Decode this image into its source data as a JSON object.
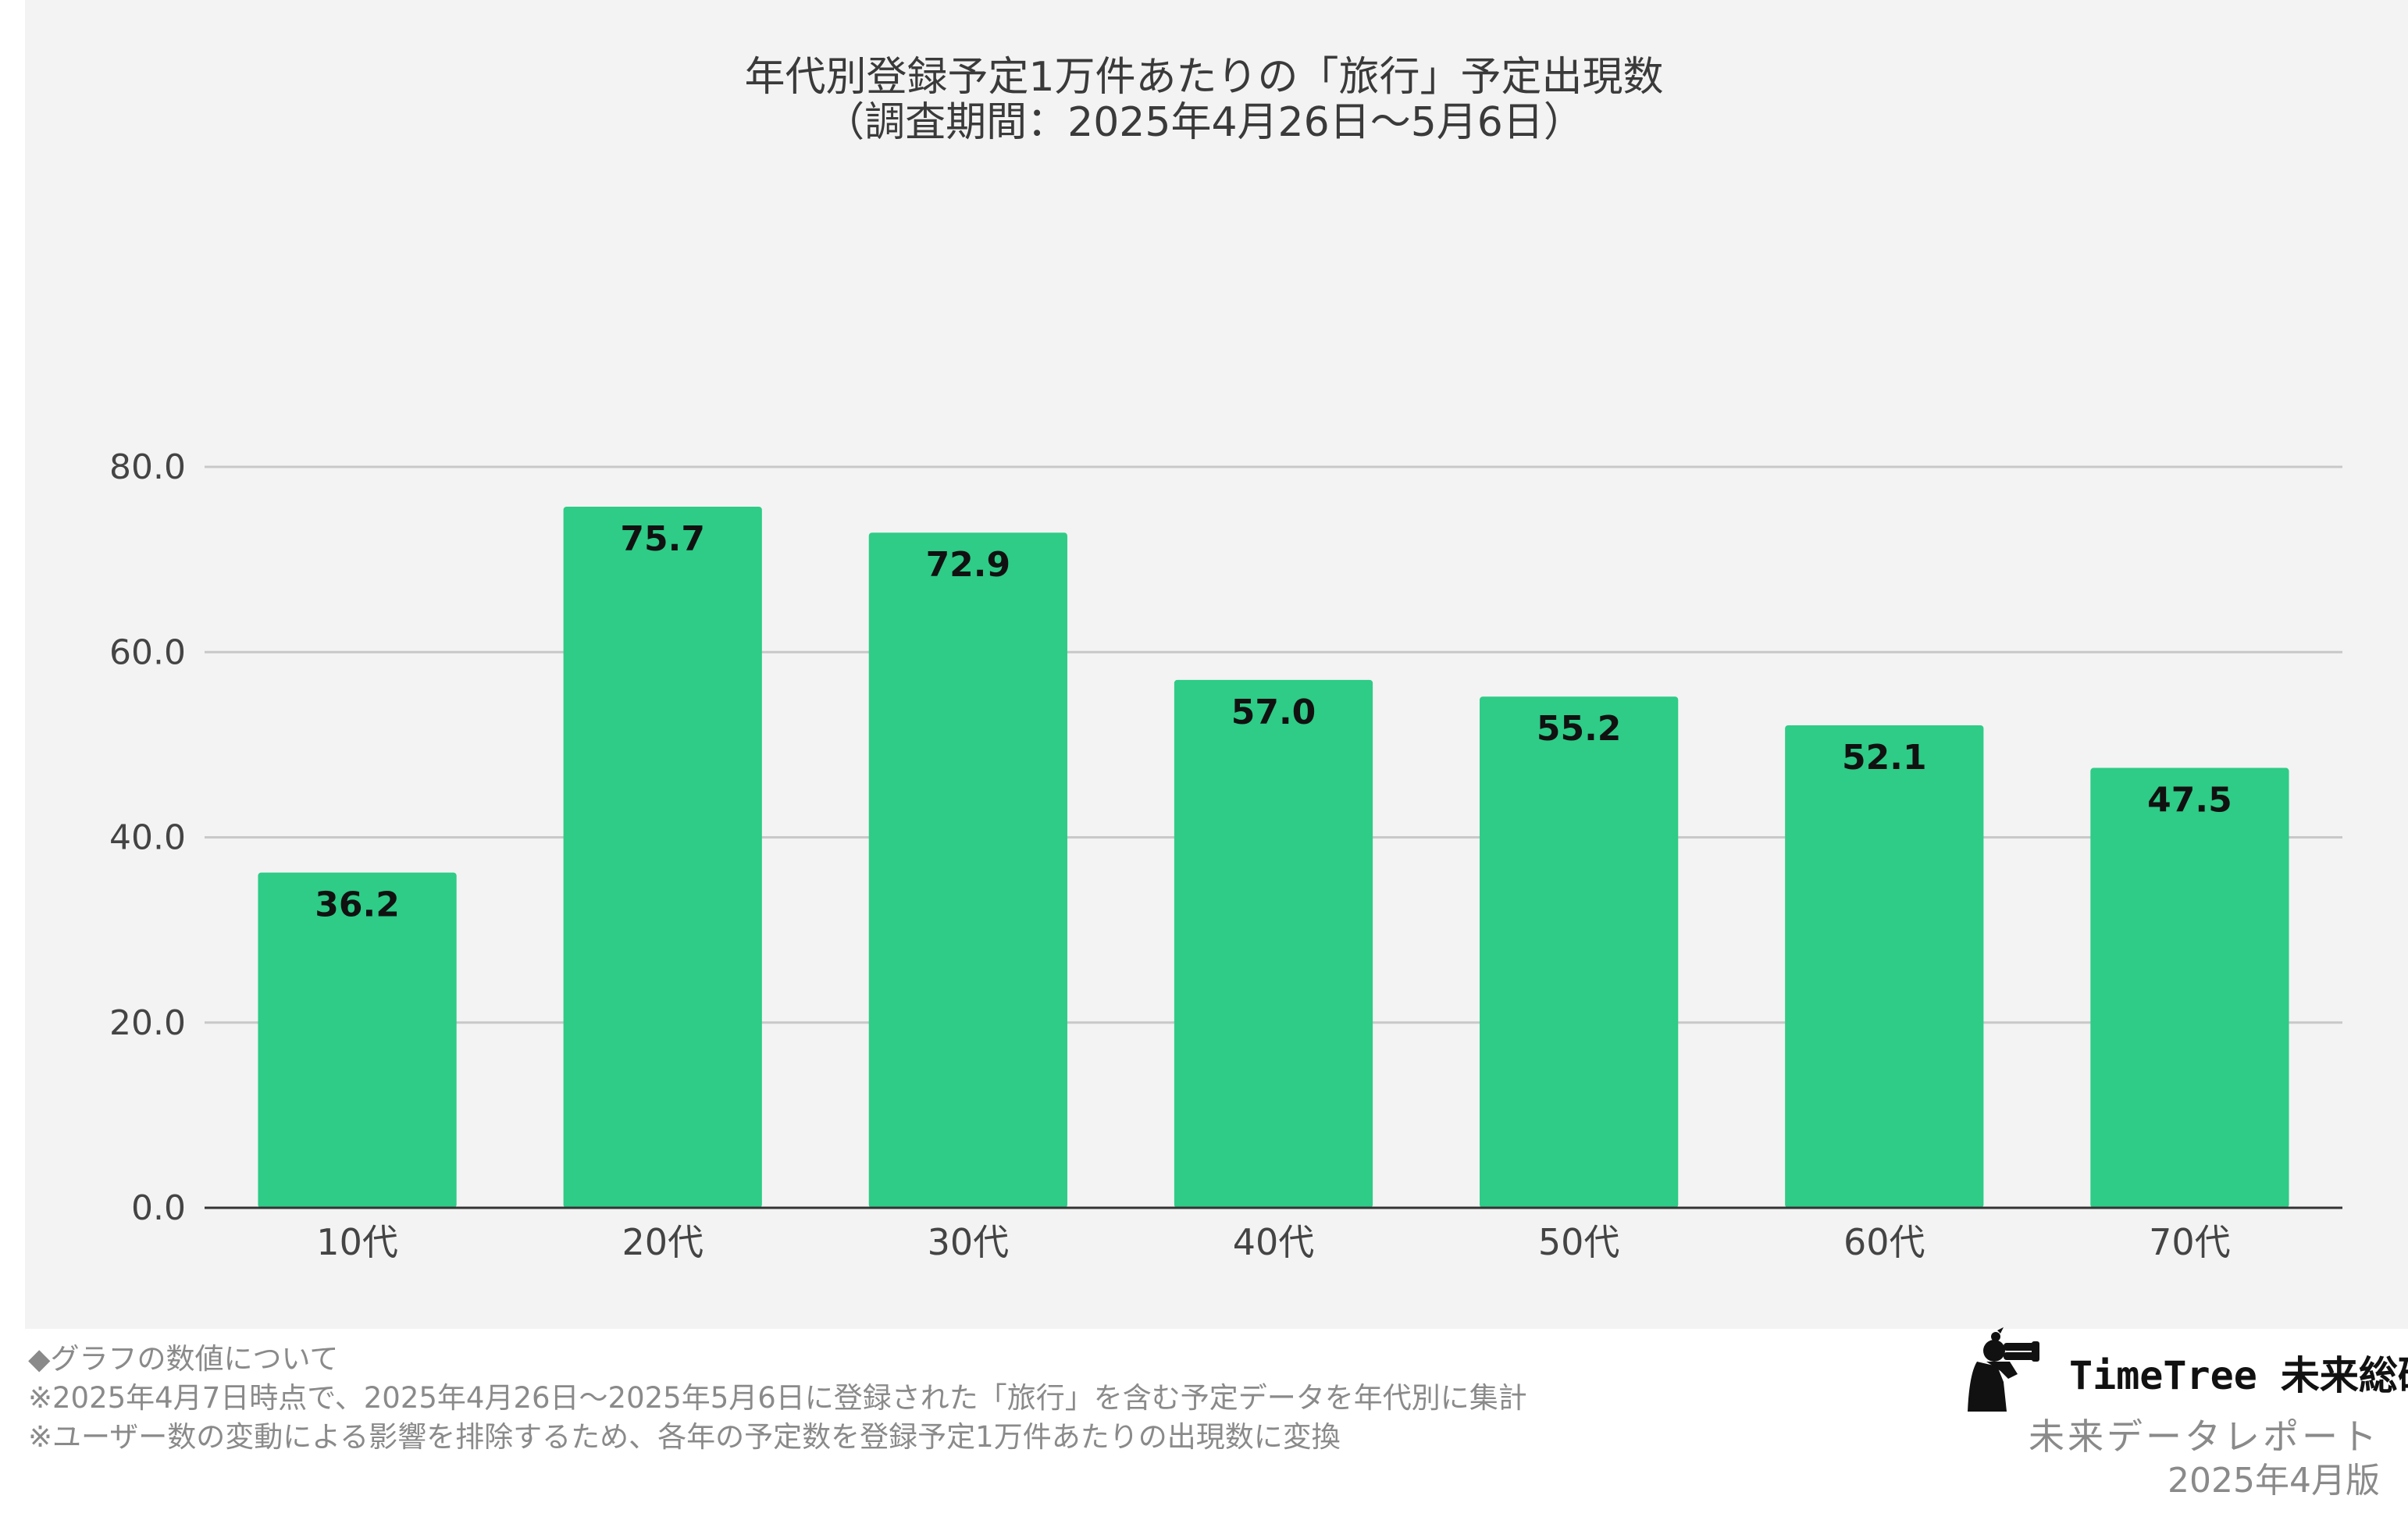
{
  "chart_data": {
    "type": "bar",
    "title_line1": "年代別登録予定1万件あたりの「旅行」予定出現数",
    "title_line2": "（調査期間：2025年4月26日〜5月6日）",
    "categories": [
      "10代",
      "20代",
      "30代",
      "40代",
      "50代",
      "60代",
      "70代"
    ],
    "values": [
      36.2,
      75.7,
      72.9,
      57.0,
      55.2,
      52.1,
      47.5
    ],
    "data_labels": [
      "36.2",
      "75.7",
      "72.9",
      "57.0",
      "55.2",
      "52.1",
      "47.5"
    ],
    "y_ticks": [
      "0.0",
      "20.0",
      "40.0",
      "60.0",
      "80.0"
    ],
    "ylim": [
      0,
      80
    ],
    "xlabel": "",
    "ylabel": "",
    "grid": true,
    "bar_color": "#2ecc87",
    "background": "#f3f3f3"
  },
  "notes": [
    "◆グラフの数値について",
    "※2025年4月7日時点で、2025年4月26日〜2025年5月6日に登録された「旅行」を含む予定データを年代別に集計",
    "※ユーザー数の変動による影響を排除するため、各年の予定数を登録予定1万件あたりの出現数に変換"
  ],
  "brand": {
    "name": "TimeTree 未来総研",
    "report": "未来データレポート",
    "edition": "2025年4月版",
    "logo_icon": "person-with-binoculars-icon"
  }
}
